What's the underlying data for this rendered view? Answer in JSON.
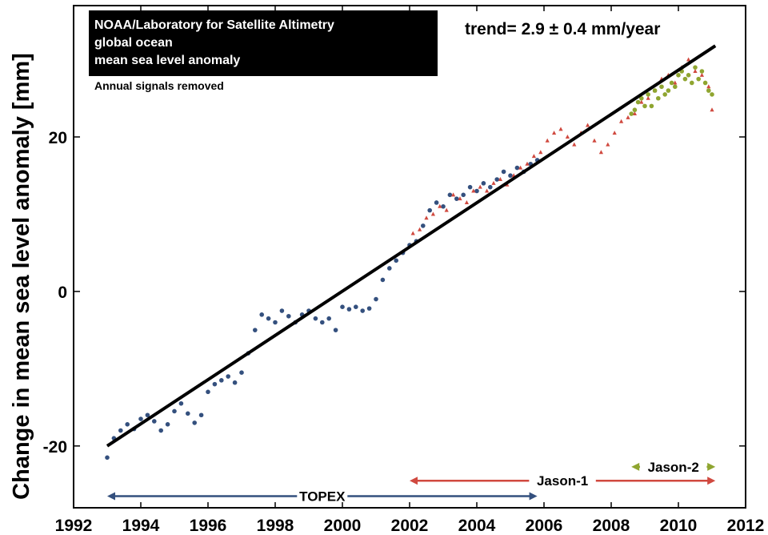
{
  "chart_data": {
    "type": "scatter",
    "title_lines": [
      "NOAA/Laboratory for Satellite Altimetry",
      "global ocean",
      "mean sea level anomaly"
    ],
    "subtitle": "Annual signals removed",
    "trend_label": "trend= 2.9 ± 0.4 mm/year",
    "ylabel": "Change in mean sea level anomaly [mm]",
    "xlabel": "",
    "xlim": [
      1992,
      2012
    ],
    "ylim": [
      -28,
      37
    ],
    "grid": false,
    "x_ticks": [
      1992,
      1994,
      1996,
      1998,
      2000,
      2002,
      2004,
      2006,
      2008,
      2010,
      2012
    ],
    "x_tick_labels": [
      "1992",
      "1994",
      "1996",
      "1998",
      "2000",
      "2002",
      "2004",
      "2006",
      "2008",
      "2010",
      "2012"
    ],
    "y_ticks": [
      -20,
      0,
      20
    ],
    "y_tick_labels": [
      "-20",
      "0",
      "20"
    ],
    "trend_line": {
      "x": [
        1993.0,
        2011.1
      ],
      "y": [
        -20.0,
        31.8
      ],
      "color": "#000000"
    },
    "series": [
      {
        "name": "TOPEX",
        "color": "#34507e",
        "marker": "circle",
        "x": [
          1993.0,
          1993.2,
          1993.4,
          1993.6,
          1993.8,
          1994.0,
          1994.2,
          1994.4,
          1994.6,
          1994.8,
          1995.0,
          1995.2,
          1995.4,
          1995.6,
          1995.8,
          1996.0,
          1996.2,
          1996.4,
          1996.6,
          1996.8,
          1997.0,
          1997.2,
          1997.4,
          1997.6,
          1997.8,
          1998.0,
          1998.2,
          1998.4,
          1998.6,
          1998.8,
          1999.0,
          1999.2,
          1999.4,
          1999.6,
          1999.8,
          2000.0,
          2000.2,
          2000.4,
          2000.6,
          2000.8,
          2001.0,
          2001.2,
          2001.4,
          2001.6,
          2001.8,
          2002.0,
          2002.2,
          2002.4,
          2002.6,
          2002.8,
          2003.0,
          2003.2,
          2003.4,
          2003.6,
          2003.8,
          2004.0,
          2004.2,
          2004.4,
          2004.6,
          2004.8,
          2005.0,
          2005.2,
          2005.4,
          2005.6,
          2005.8
        ],
        "y": [
          -21.5,
          -19.0,
          -18.0,
          -17.2,
          -17.8,
          -16.5,
          -16.0,
          -16.8,
          -18.0,
          -17.2,
          -15.5,
          -14.5,
          -15.8,
          -17.0,
          -16.0,
          -13.0,
          -12.0,
          -11.5,
          -11.0,
          -11.8,
          -10.5,
          -8.0,
          -5.0,
          -3.0,
          -3.5,
          -4.0,
          -2.5,
          -3.2,
          -4.0,
          -3.0,
          -2.5,
          -3.5,
          -4.0,
          -3.5,
          -5.0,
          -2.0,
          -2.3,
          -2.0,
          -2.5,
          -2.2,
          -1.0,
          1.5,
          3.0,
          4.0,
          5.0,
          6.0,
          6.5,
          8.5,
          10.5,
          11.5,
          11.0,
          12.5,
          12.0,
          12.5,
          13.5,
          13.0,
          14.0,
          13.5,
          14.5,
          15.5,
          15.0,
          16.0,
          15.5,
          16.5,
          17.0
        ]
      },
      {
        "name": "Jason-1",
        "color": "#d0493f",
        "marker": "triangle",
        "x": [
          2002.1,
          2002.3,
          2002.5,
          2002.7,
          2002.9,
          2003.1,
          2003.3,
          2003.5,
          2003.7,
          2003.9,
          2004.1,
          2004.3,
          2004.5,
          2004.7,
          2004.9,
          2005.1,
          2005.3,
          2005.5,
          2005.7,
          2005.9,
          2006.1,
          2006.3,
          2006.5,
          2006.7,
          2006.9,
          2007.1,
          2007.3,
          2007.5,
          2007.7,
          2007.9,
          2008.1,
          2008.3,
          2008.5,
          2008.7,
          2008.9,
          2009.1,
          2009.3,
          2009.5,
          2009.7,
          2009.9,
          2010.1,
          2010.3,
          2010.5,
          2010.7,
          2010.9,
          2011.0
        ],
        "y": [
          7.5,
          8.0,
          9.5,
          10.0,
          11.0,
          10.5,
          12.5,
          12.0,
          11.5,
          13.0,
          13.5,
          13.0,
          14.0,
          14.5,
          13.8,
          15.0,
          16.0,
          16.5,
          17.5,
          18.0,
          19.5,
          20.5,
          21.0,
          20.0,
          19.0,
          20.5,
          21.5,
          19.5,
          18.0,
          19.0,
          20.5,
          22.0,
          22.5,
          23.0,
          24.5,
          25.0,
          26.0,
          27.5,
          28.0,
          27.0,
          29.0,
          30.0,
          28.5,
          28.0,
          26.5,
          23.5
        ]
      },
      {
        "name": "Jason-2",
        "color": "#8fa530",
        "marker": "circle",
        "x": [
          2008.6,
          2008.7,
          2008.8,
          2008.9,
          2009.0,
          2009.1,
          2009.2,
          2009.3,
          2009.4,
          2009.5,
          2009.6,
          2009.7,
          2009.8,
          2009.9,
          2010.0,
          2010.1,
          2010.2,
          2010.3,
          2010.4,
          2010.5,
          2010.6,
          2010.7,
          2010.8,
          2010.9,
          2011.0
        ],
        "y": [
          23.0,
          23.5,
          24.5,
          25.0,
          24.0,
          25.5,
          24.0,
          26.0,
          25.0,
          26.5,
          25.5,
          26.0,
          27.0,
          26.5,
          28.0,
          28.5,
          27.5,
          28.0,
          27.0,
          29.0,
          27.5,
          28.5,
          27.0,
          26.0,
          25.5
        ]
      }
    ],
    "missions": [
      {
        "label": "TOPEX",
        "x_start": 1993.0,
        "x_end": 2005.8,
        "y": -26.5,
        "color": "#34507e"
      },
      {
        "label": "Jason-1",
        "x_start": 2002.0,
        "x_end": 2011.1,
        "y": -24.5,
        "color": "#d0493f"
      },
      {
        "label": "Jason-2",
        "x_start": 2008.6,
        "x_end": 2011.1,
        "y": -22.7,
        "color": "#8fa530"
      }
    ]
  }
}
